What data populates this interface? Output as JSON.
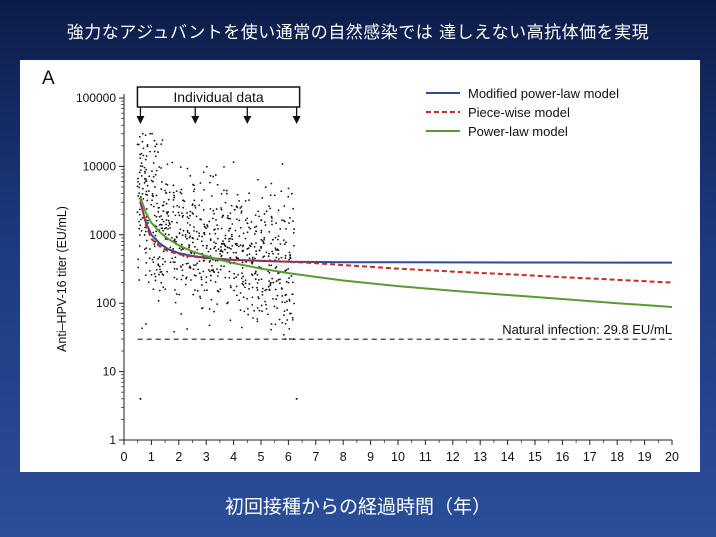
{
  "slide": {
    "title": "強力なアジュバントを使い通常の自然感染では 達しえない高抗体価を実現",
    "caption": "初回接種からの経過時間（年）"
  },
  "chart_data": {
    "type": "line",
    "panel_label": "A",
    "ylabel": "Anti–HPV-16 titer (EU/mL)",
    "xlabel": "",
    "yscale": "log",
    "xlim": [
      0,
      20
    ],
    "ylim": [
      1,
      100000
    ],
    "x_ticks": [
      "0",
      "1",
      "2",
      "3",
      "4",
      "5",
      "6",
      "7",
      "8",
      "9",
      "10",
      "11",
      "12",
      "13",
      "14",
      "15",
      "16",
      "17",
      "18",
      "19",
      "20"
    ],
    "y_ticks": [
      "1",
      "10",
      "100",
      "1000",
      "10000",
      "100000"
    ],
    "individual_data_label": "Individual data",
    "individual_data_times": [
      0.6,
      2.6,
      4.5,
      6.3
    ],
    "individual_data_range": [
      0.6,
      6.3
    ],
    "legend_position": "top-right",
    "series": [
      {
        "name": "Modified power-law model",
        "color": "#2e4b9a",
        "style": "solid",
        "x": [
          0.6,
          0.8,
          1,
          1.3,
          1.6,
          2,
          2.5,
          3,
          3.5,
          4,
          5,
          6,
          7,
          8,
          10,
          12,
          14,
          16,
          18,
          20
        ],
        "y": [
          3000,
          1500,
          1000,
          750,
          620,
          540,
          490,
          460,
          445,
          430,
          415,
          405,
          400,
          398,
          396,
          395,
          394,
          393,
          392,
          392
        ]
      },
      {
        "name": "Piece-wise model",
        "color": "#cc2a2a",
        "style": "dashed",
        "x": [
          0.6,
          0.8,
          1,
          1.3,
          1.6,
          2,
          2.5,
          3,
          3.5,
          4,
          5,
          6,
          7,
          8,
          10,
          12,
          14,
          16,
          18,
          20
        ],
        "y": [
          3200,
          1400,
          870,
          680,
          580,
          520,
          480,
          455,
          440,
          430,
          415,
          405,
          385,
          360,
          320,
          290,
          265,
          240,
          220,
          200
        ]
      },
      {
        "name": "Power-law model",
        "color": "#5c9a35",
        "style": "solid",
        "x": [
          0.6,
          0.8,
          1,
          1.3,
          1.6,
          2,
          2.5,
          3,
          3.5,
          4,
          5,
          6,
          7,
          8,
          10,
          12,
          14,
          16,
          18,
          20
        ],
        "y": [
          3500,
          2100,
          1500,
          1100,
          880,
          700,
          570,
          490,
          430,
          385,
          320,
          275,
          242,
          215,
          178,
          152,
          132,
          115,
          100,
          88
        ]
      }
    ],
    "reference_line": {
      "label": "Natural infection: 29.8 EU/mL",
      "y": 29.8,
      "color": "#222222",
      "style": "dashed"
    }
  }
}
